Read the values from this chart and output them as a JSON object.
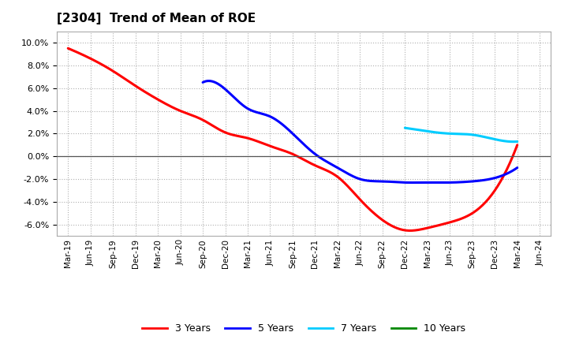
{
  "title": "[2304]  Trend of Mean of ROE",
  "ylim": [
    -0.07,
    0.11
  ],
  "yticks": [
    -0.06,
    -0.04,
    -0.02,
    0.0,
    0.02,
    0.04,
    0.06,
    0.08,
    0.1
  ],
  "background_color": "#ffffff",
  "grid_color": "#b0b0b0",
  "x_labels": [
    "Mar-19",
    "Jun-19",
    "Sep-19",
    "Dec-19",
    "Mar-20",
    "Jun-20",
    "Sep-20",
    "Dec-20",
    "Mar-21",
    "Jun-21",
    "Sep-21",
    "Dec-21",
    "Mar-22",
    "Jun-22",
    "Sep-22",
    "Dec-22",
    "Mar-23",
    "Jun-23",
    "Sep-23",
    "Dec-23",
    "Mar-24",
    "Jun-24"
  ],
  "y3": [
    0.095,
    0.086,
    0.075,
    0.062,
    0.05,
    0.04,
    0.032,
    0.021,
    0.016,
    0.009,
    0.002,
    -0.008,
    -0.018,
    -0.038,
    -0.056,
    -0.065,
    -0.063,
    -0.058,
    -0.05,
    -0.03,
    0.01,
    null
  ],
  "y5": [
    null,
    null,
    null,
    null,
    null,
    null,
    0.065,
    0.059,
    0.042,
    0.035,
    0.02,
    0.002,
    -0.01,
    -0.02,
    -0.022,
    -0.023,
    -0.023,
    -0.023,
    -0.022,
    -0.019,
    -0.01,
    null
  ],
  "y7": [
    null,
    null,
    null,
    null,
    null,
    null,
    null,
    null,
    null,
    null,
    null,
    null,
    null,
    null,
    null,
    0.025,
    0.022,
    0.02,
    0.019,
    0.015,
    0.013,
    null
  ],
  "y10": [
    null,
    null,
    null,
    null,
    null,
    null,
    null,
    null,
    null,
    null,
    null,
    null,
    null,
    null,
    null,
    null,
    null,
    null,
    null,
    null,
    null,
    null
  ],
  "colors": {
    "3 Years": "#ff0000",
    "5 Years": "#0000ff",
    "7 Years": "#00ccff",
    "10 Years": "#008800"
  },
  "linewidth": 2.2
}
